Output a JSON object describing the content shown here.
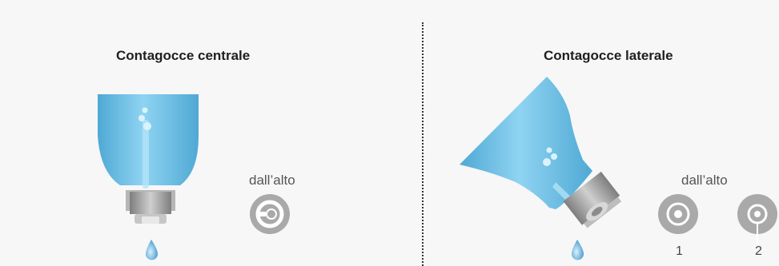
{
  "left_panel": {
    "title": "Contagocce centrale",
    "caption": "dall’alto"
  },
  "right_panel": {
    "title": "Contagocce laterale",
    "caption": "dall’alto",
    "view_labels": [
      "1",
      "2"
    ]
  },
  "colors": {
    "bottle": "#6cc3e8",
    "bottle_highlight": "#9fdcf5",
    "cap": "#9e9e9e",
    "drop": "#5aa8d6",
    "background": "#f7f7f7"
  }
}
